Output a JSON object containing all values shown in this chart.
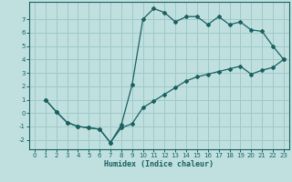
{
  "title": "",
  "xlabel": "Humidex (Indice chaleur)",
  "bg_color": "#c0e0e0",
  "grid_color": "#a0c8c8",
  "line_color": "#1a6060",
  "xlim": [
    -0.5,
    23.5
  ],
  "ylim": [
    -2.7,
    8.3
  ],
  "xticks": [
    0,
    1,
    2,
    3,
    4,
    5,
    6,
    7,
    8,
    9,
    10,
    11,
    12,
    13,
    14,
    15,
    16,
    17,
    18,
    19,
    20,
    21,
    22,
    23
  ],
  "yticks": [
    -2,
    -1,
    0,
    1,
    2,
    3,
    4,
    5,
    6,
    7
  ],
  "curve1_x": [
    1,
    2,
    3,
    4,
    5,
    6,
    7,
    8,
    9,
    10,
    11,
    12,
    13,
    14,
    15,
    16,
    17,
    18,
    19,
    20,
    21,
    22,
    23
  ],
  "curve1_y": [
    1.0,
    0.1,
    -0.7,
    -1.0,
    -1.1,
    -1.2,
    -2.2,
    -0.9,
    2.1,
    7.0,
    7.8,
    7.5,
    6.8,
    7.2,
    7.2,
    6.6,
    7.2,
    6.6,
    6.8,
    6.2,
    6.1,
    5.0,
    4.0
  ],
  "curve2_x": [
    1,
    2,
    3,
    4,
    5,
    6,
    7,
    8,
    9,
    10,
    11,
    12,
    13,
    14,
    15,
    16,
    17,
    18,
    19,
    20,
    21,
    22,
    23
  ],
  "curve2_y": [
    1.0,
    0.1,
    -0.7,
    -1.0,
    -1.1,
    -1.2,
    -2.2,
    -1.1,
    -0.8,
    0.4,
    0.9,
    1.4,
    1.9,
    2.4,
    2.7,
    2.9,
    3.1,
    3.3,
    3.5,
    2.9,
    3.2,
    3.4,
    4.0
  ]
}
